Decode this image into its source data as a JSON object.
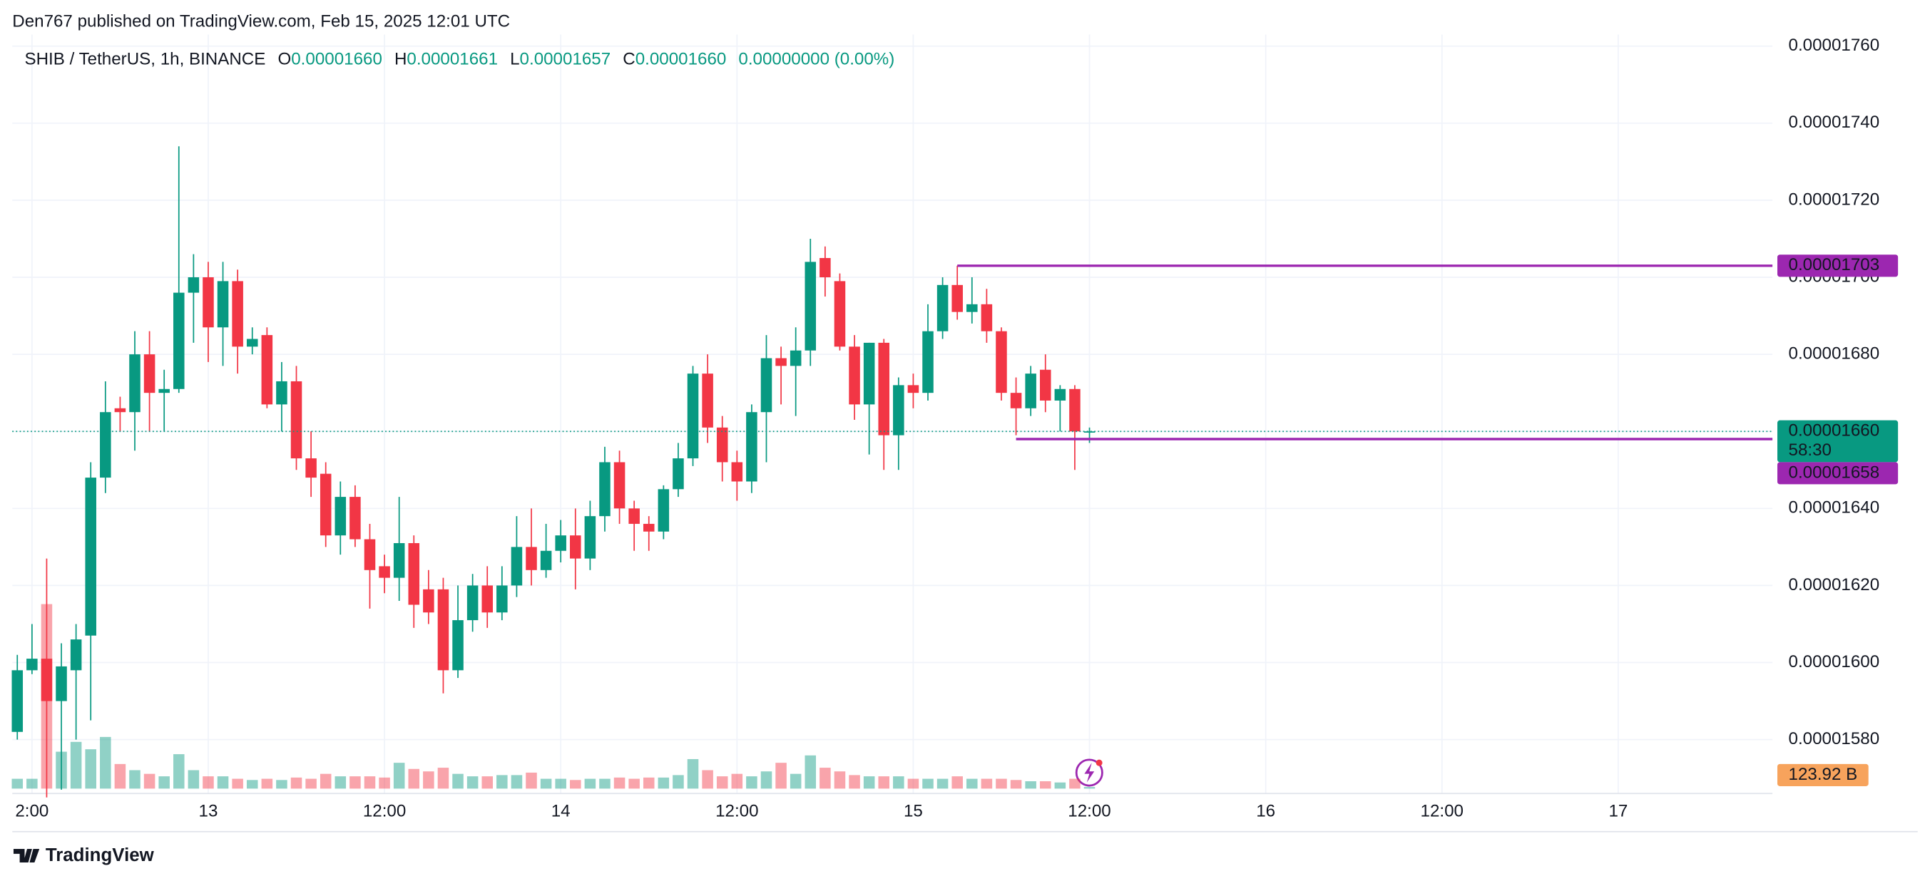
{
  "header": {
    "published": "Den767 published on TradingView.com, Feb 15, 2025 12:01 UTC"
  },
  "footer": {
    "brand": "TradingView"
  },
  "chart_data": {
    "type": "candlestick",
    "symbol": "SHIB / TetherUS, 1h, BINANCE",
    "ohlc_legend": [
      {
        "key": "O",
        "value": "0.00001660"
      },
      {
        "key": "H",
        "value": "0.00001661"
      },
      {
        "key": "L",
        "value": "0.00001657"
      },
      {
        "key": "C",
        "value": "0.00001660"
      }
    ],
    "change": "0.00000000 (0.00%)",
    "up_color": "#089981",
    "down_color": "#f23645",
    "x": [
      11,
      12,
      13,
      14,
      15,
      16,
      17,
      18,
      19,
      20,
      21,
      22,
      23,
      24,
      25,
      26,
      27,
      28,
      29,
      30,
      31,
      32,
      33,
      34,
      35,
      36,
      37,
      38,
      39,
      40,
      41,
      42,
      43,
      44,
      45,
      46,
      47,
      48,
      49,
      50,
      51,
      52,
      53,
      54,
      55,
      56,
      57,
      58,
      59,
      60,
      61,
      62,
      63,
      64,
      65,
      66,
      67,
      68,
      69,
      70,
      71,
      72,
      73,
      74,
      75,
      76,
      77,
      78,
      79,
      80,
      81,
      82,
      83,
      84
    ],
    "open": [
      1.582e-05,
      1.598e-05,
      1.601e-05,
      1.59e-05,
      1.598e-05,
      1.607e-05,
      1.648e-05,
      1.666e-05,
      1.665e-05,
      1.68e-05,
      1.67e-05,
      1.671e-05,
      1.696e-05,
      1.7e-05,
      1.687e-05,
      1.699e-05,
      1.682e-05,
      1.685e-05,
      1.667e-05,
      1.673e-05,
      1.653e-05,
      1.649e-05,
      1.633e-05,
      1.643e-05,
      1.632e-05,
      1.625e-05,
      1.622e-05,
      1.631e-05,
      1.619e-05,
      1.619e-05,
      1.598e-05,
      1.611e-05,
      1.62e-05,
      1.613e-05,
      1.62e-05,
      1.63e-05,
      1.624e-05,
      1.629e-05,
      1.633e-05,
      1.627e-05,
      1.638e-05,
      1.652e-05,
      1.64e-05,
      1.636e-05,
      1.634e-05,
      1.645e-05,
      1.653e-05,
      1.675e-05,
      1.661e-05,
      1.652e-05,
      1.647e-05,
      1.665e-05,
      1.679e-05,
      1.677e-05,
      1.681e-05,
      1.705e-05,
      1.699e-05,
      1.682e-05,
      1.667e-05,
      1.683e-05,
      1.659e-05,
      1.672e-05,
      1.67e-05,
      1.686e-05,
      1.698e-05,
      1.691e-05,
      1.693e-05,
      1.686e-05,
      1.67e-05,
      1.666e-05,
      1.676e-05,
      1.668e-05,
      1.671e-05,
      1.66e-05
    ],
    "high": [
      1.602e-05,
      1.61e-05,
      1.627e-05,
      1.605e-05,
      1.61e-05,
      1.652e-05,
      1.673e-05,
      1.669e-05,
      1.686e-05,
      1.686e-05,
      1.676e-05,
      1.734e-05,
      1.706e-05,
      1.704e-05,
      1.704e-05,
      1.702e-05,
      1.687e-05,
      1.687e-05,
      1.678e-05,
      1.677e-05,
      1.66e-05,
      1.652e-05,
      1.647e-05,
      1.646e-05,
      1.636e-05,
      1.628e-05,
      1.643e-05,
      1.633e-05,
      1.624e-05,
      1.622e-05,
      1.62e-05,
      1.623e-05,
      1.625e-05,
      1.625e-05,
      1.638e-05,
      1.64e-05,
      1.636e-05,
      1.637e-05,
      1.64e-05,
      1.642e-05,
      1.656e-05,
      1.655e-05,
      1.642e-05,
      1.638e-05,
      1.646e-05,
      1.657e-05,
      1.677e-05,
      1.68e-05,
      1.664e-05,
      1.655e-05,
      1.667e-05,
      1.685e-05,
      1.682e-05,
      1.687e-05,
      1.71e-05,
      1.708e-05,
      1.701e-05,
      1.685e-05,
      1.683e-05,
      1.684e-05,
      1.674e-05,
      1.675e-05,
      1.693e-05,
      1.7e-05,
      1.703e-05,
      1.7e-05,
      1.697e-05,
      1.687e-05,
      1.674e-05,
      1.677e-05,
      1.68e-05,
      1.672e-05,
      1.672e-05,
      1.661e-05
    ],
    "low": [
      1.58e-05,
      1.597e-05,
      1.565e-05,
      1.567e-05,
      1.58e-05,
      1.585e-05,
      1.644e-05,
      1.66e-05,
      1.655e-05,
      1.66e-05,
      1.66e-05,
      1.67e-05,
      1.683e-05,
      1.678e-05,
      1.677e-05,
      1.675e-05,
      1.68e-05,
      1.666e-05,
      1.66e-05,
      1.65e-05,
      1.643e-05,
      1.63e-05,
      1.628e-05,
      1.63e-05,
      1.614e-05,
      1.618e-05,
      1.616e-05,
      1.609e-05,
      1.61e-05,
      1.592e-05,
      1.596e-05,
      1.608e-05,
      1.609e-05,
      1.611e-05,
      1.617e-05,
      1.62e-05,
      1.622e-05,
      1.626e-05,
      1.619e-05,
      1.624e-05,
      1.634e-05,
      1.636e-05,
      1.629e-05,
      1.629e-05,
      1.632e-05,
      1.643e-05,
      1.651e-05,
      1.657e-05,
      1.647e-05,
      1.642e-05,
      1.644e-05,
      1.652e-05,
      1.667e-05,
      1.664e-05,
      1.677e-05,
      1.695e-05,
      1.681e-05,
      1.663e-05,
      1.654e-05,
      1.65e-05,
      1.65e-05,
      1.666e-05,
      1.668e-05,
      1.684e-05,
      1.689e-05,
      1.688e-05,
      1.683e-05,
      1.668e-05,
      1.659e-05,
      1.664e-05,
      1.665e-05,
      1.66e-05,
      1.65e-05,
      1.657e-05
    ],
    "close": [
      1.598e-05,
      1.601e-05,
      1.59e-05,
      1.599e-05,
      1.606e-05,
      1.648e-05,
      1.665e-05,
      1.665e-05,
      1.68e-05,
      1.67e-05,
      1.671e-05,
      1.696e-05,
      1.7e-05,
      1.687e-05,
      1.699e-05,
      1.682e-05,
      1.684e-05,
      1.667e-05,
      1.673e-05,
      1.653e-05,
      1.648e-05,
      1.633e-05,
      1.643e-05,
      1.632e-05,
      1.624e-05,
      1.622e-05,
      1.631e-05,
      1.615e-05,
      1.613e-05,
      1.598e-05,
      1.611e-05,
      1.62e-05,
      1.613e-05,
      1.62e-05,
      1.63e-05,
      1.624e-05,
      1.629e-05,
      1.633e-05,
      1.627e-05,
      1.638e-05,
      1.652e-05,
      1.64e-05,
      1.636e-05,
      1.634e-05,
      1.645e-05,
      1.653e-05,
      1.675e-05,
      1.661e-05,
      1.652e-05,
      1.647e-05,
      1.665e-05,
      1.679e-05,
      1.677e-05,
      1.681e-05,
      1.704e-05,
      1.7e-05,
      1.682e-05,
      1.667e-05,
      1.683e-05,
      1.659e-05,
      1.672e-05,
      1.67e-05,
      1.686e-05,
      1.698e-05,
      1.691e-05,
      1.693e-05,
      1.686e-05,
      1.67e-05,
      1.666e-05,
      1.675e-05,
      1.668e-05,
      1.671e-05,
      1.66e-05,
      1.66e-05
    ],
    "volume": [
      760,
      760,
      14250,
      2850,
      3610,
      3040,
      3990,
      1900,
      1425,
      1140,
      950,
      2660,
      1425,
      950,
      950,
      760,
      665,
      760,
      665,
      855,
      760,
      1140,
      950,
      950,
      950,
      855,
      1995,
      1520,
      1330,
      1615,
      1140,
      950,
      950,
      1045,
      1045,
      1235,
      760,
      760,
      665,
      760,
      760,
      855,
      760,
      855,
      855,
      1045,
      2280,
      1425,
      950,
      1140,
      950,
      1330,
      1995,
      1140,
      2565,
      1615,
      1330,
      1045,
      950,
      950,
      950,
      760,
      760,
      760,
      950,
      760,
      760,
      760,
      665,
      570,
      570,
      475,
      760,
      123.92
    ],
    "volume_last_label": "123.92 B",
    "xlim": [
      10.66,
      130.5
    ],
    "xticks": [
      {
        "value": 12,
        "label": "2:00"
      },
      {
        "value": 24,
        "label": "13"
      },
      {
        "value": 36,
        "label": "12:00"
      },
      {
        "value": 48,
        "label": "14"
      },
      {
        "value": 60,
        "label": "12:00"
      },
      {
        "value": 72,
        "label": "15"
      },
      {
        "value": 84,
        "label": "12:00"
      },
      {
        "value": 96,
        "label": "16"
      },
      {
        "value": 108,
        "label": "12:00"
      },
      {
        "value": 120,
        "label": "17"
      }
    ],
    "ylim": [
      1.566e-05,
      1.763e-05
    ],
    "yticks": [
      {
        "value": 1.58e-05,
        "label": "0.00001580"
      },
      {
        "value": 1.6e-05,
        "label": "0.00001600"
      },
      {
        "value": 1.62e-05,
        "label": "0.00001620"
      },
      {
        "value": 1.64e-05,
        "label": "0.00001640"
      },
      {
        "value": 1.66e-05,
        "label": "0.00001660"
      },
      {
        "value": 1.68e-05,
        "label": "0.00001680"
      },
      {
        "value": 1.7e-05,
        "label": "0.00001700"
      },
      {
        "value": 1.72e-05,
        "label": "0.00001720"
      },
      {
        "value": 1.74e-05,
        "label": "0.00001740"
      },
      {
        "value": 1.76e-05,
        "label": "0.00001760"
      }
    ],
    "grid": true,
    "current_price": {
      "value": 1.66e-05,
      "label": "0.00001660",
      "countdown": "58:30",
      "color": "#089981"
    },
    "hlines": [
      {
        "value": 1.703e-05,
        "label": "0.00001703",
        "color": "#9c27b0"
      },
      {
        "value": 1.658e-05,
        "label": "0.00001658",
        "color": "#9c27b0"
      }
    ]
  }
}
